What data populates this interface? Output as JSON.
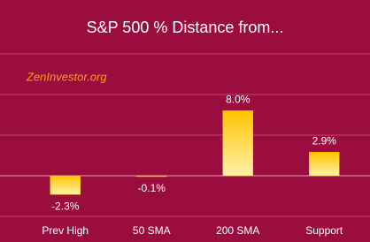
{
  "chart_data": {
    "type": "bar",
    "title": "S&P 500 % Distance from...",
    "annotation": "ZenInvestor.org",
    "categories": [
      "Prev High",
      "50 SMA",
      "200 SMA",
      "Support"
    ],
    "values": [
      -2.3,
      -0.1,
      8.0,
      2.9
    ],
    "value_labels": [
      "-2.3%",
      "-0.1%",
      "8.0%",
      "2.9%"
    ],
    "color": "#ffc400",
    "ylim": [
      -5,
      15
    ],
    "yticks": [
      -5,
      0,
      5,
      10,
      15
    ],
    "grid": true
  }
}
